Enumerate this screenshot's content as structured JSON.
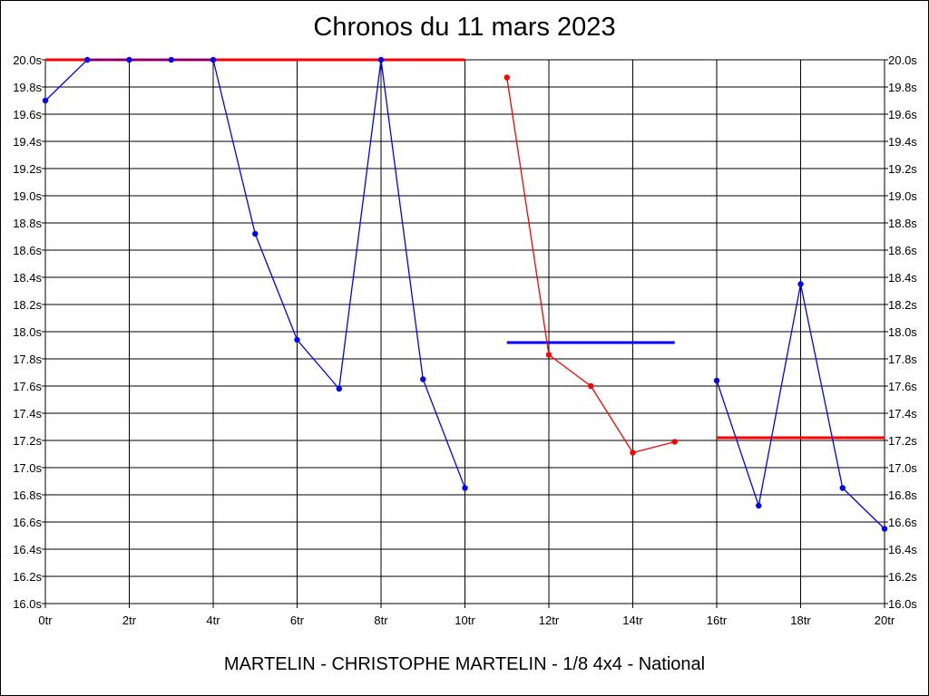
{
  "chart_data": {
    "type": "line",
    "title": "Chronos du 11 mars 2023",
    "subtitle": "MARTELIN - CHRISTOPHE MARTELIN - 1/8 4x4 - National",
    "ylim": [
      16.0,
      20.0
    ],
    "xlim": [
      0,
      20
    ],
    "x_ticks": [
      "0tr",
      "2tr",
      "4tr",
      "6tr",
      "8tr",
      "10tr",
      "12tr",
      "14tr",
      "16tr",
      "18tr",
      "20tr"
    ],
    "y_ticks": [
      "20.0s",
      "19.8s",
      "19.6s",
      "19.4s",
      "19.2s",
      "19.0s",
      "18.8s",
      "18.6s",
      "18.4s",
      "18.2s",
      "18.0s",
      "17.8s",
      "17.6s",
      "17.4s",
      "17.2s",
      "17.0s",
      "16.8s",
      "16.6s",
      "16.4s",
      "16.2s",
      "16.0s"
    ],
    "grid": true,
    "series": [
      {
        "color": "#0000ff",
        "x": [
          0,
          1,
          2,
          3,
          4,
          5,
          6,
          7,
          8,
          9,
          10
        ],
        "y": [
          19.7,
          20.0,
          20.0,
          20.0,
          20.0,
          18.72,
          17.94,
          17.58,
          20.0,
          17.65,
          16.85
        ]
      },
      {
        "color": "#ff0000",
        "x": [
          11,
          12,
          13,
          14,
          15
        ],
        "y": [
          19.87,
          17.83,
          17.6,
          17.11,
          17.19
        ]
      },
      {
        "color": "#0000ff",
        "x": [
          16,
          17,
          18,
          19,
          20
        ],
        "y": [
          17.64,
          16.72,
          18.35,
          16.85,
          16.55
        ]
      }
    ],
    "reference_lines": [
      {
        "color": "#ff0000",
        "x": [
          0,
          10
        ],
        "y": 20.0
      },
      {
        "color": "#0000ff",
        "x": [
          11,
          15
        ],
        "y": 17.92
      },
      {
        "color": "#ff0000",
        "x": [
          16,
          20
        ],
        "y": 17.22
      }
    ]
  }
}
